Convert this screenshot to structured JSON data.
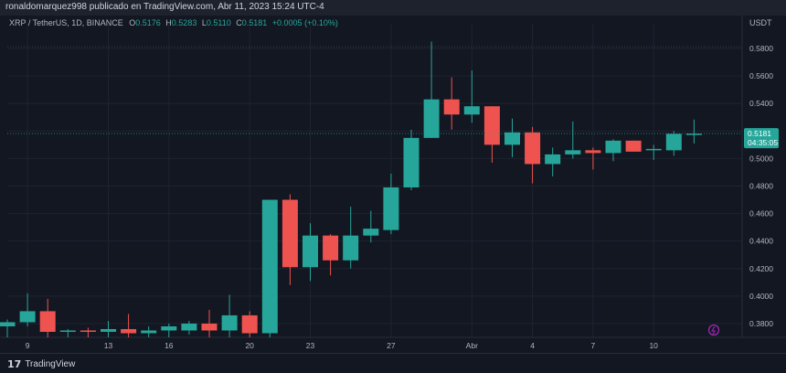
{
  "header": {
    "publisher_line": "ronaldomarquez998 publicado en TradingView.com, Abr 11, 2023 15:24 UTC-4"
  },
  "legend": {
    "symbol": "XRP / TetherUS, 1D, BINANCE",
    "open_key": "O",
    "open": "0.5176",
    "high_key": "H",
    "high": "0.5283",
    "low_key": "L",
    "low": "0.5110",
    "close_key": "C",
    "close": "0.5181",
    "change": "+0.0005 (+0.10%)"
  },
  "price_axis": {
    "unit": "USDT",
    "last_price": "0.5181",
    "countdown": "04:35:05"
  },
  "brand": {
    "name": "TradingView",
    "mark": "17"
  },
  "colors": {
    "up": "#26a69a",
    "down": "#ef5350",
    "background": "#131722",
    "grid": "#1f2330",
    "text": "#b2b5be",
    "price_tag": "#26a69a",
    "flash_icon": "#9c27b0"
  },
  "chart_data": {
    "type": "candlestick",
    "ylim": [
      0.37,
      0.59
    ],
    "y_ticks": [
      "0.3800",
      "0.4000",
      "0.4200",
      "0.4400",
      "0.4600",
      "0.4800",
      "0.5000",
      "0.5200",
      "0.5400",
      "0.5600",
      "0.5800"
    ],
    "x_tick_labels": [
      "9",
      "13",
      "16",
      "20",
      "23",
      "27",
      "Abr",
      "4",
      "7",
      "10"
    ],
    "x_tick_index": [
      1,
      5,
      8,
      12,
      15,
      19,
      23,
      26,
      29,
      32
    ],
    "candles": [
      {
        "o": 0.378,
        "h": 0.383,
        "l": 0.37,
        "c": 0.381
      },
      {
        "o": 0.381,
        "h": 0.402,
        "l": 0.378,
        "c": 0.389
      },
      {
        "o": 0.389,
        "h": 0.398,
        "l": 0.37,
        "c": 0.374
      },
      {
        "o": 0.3745,
        "h": 0.376,
        "l": 0.37,
        "c": 0.375
      },
      {
        "o": 0.375,
        "h": 0.377,
        "l": 0.37,
        "c": 0.374
      },
      {
        "o": 0.374,
        "h": 0.382,
        "l": 0.37,
        "c": 0.376
      },
      {
        "o": 0.376,
        "h": 0.387,
        "l": 0.37,
        "c": 0.373
      },
      {
        "o": 0.373,
        "h": 0.378,
        "l": 0.369,
        "c": 0.375
      },
      {
        "o": 0.375,
        "h": 0.38,
        "l": 0.37,
        "c": 0.378
      },
      {
        "o": 0.375,
        "h": 0.382,
        "l": 0.372,
        "c": 0.38
      },
      {
        "o": 0.38,
        "h": 0.39,
        "l": 0.369,
        "c": 0.375
      },
      {
        "o": 0.375,
        "h": 0.401,
        "l": 0.37,
        "c": 0.386
      },
      {
        "o": 0.386,
        "h": 0.389,
        "l": 0.37,
        "c": 0.373
      },
      {
        "o": 0.373,
        "h": 0.47,
        "l": 0.37,
        "c": 0.47
      },
      {
        "o": 0.47,
        "h": 0.474,
        "l": 0.408,
        "c": 0.421
      },
      {
        "o": 0.421,
        "h": 0.453,
        "l": 0.411,
        "c": 0.444
      },
      {
        "o": 0.444,
        "h": 0.445,
        "l": 0.415,
        "c": 0.426
      },
      {
        "o": 0.426,
        "h": 0.465,
        "l": 0.42,
        "c": 0.444
      },
      {
        "o": 0.444,
        "h": 0.462,
        "l": 0.439,
        "c": 0.449
      },
      {
        "o": 0.448,
        "h": 0.489,
        "l": 0.445,
        "c": 0.479
      },
      {
        "o": 0.479,
        "h": 0.521,
        "l": 0.477,
        "c": 0.515
      },
      {
        "o": 0.515,
        "h": 0.585,
        "l": 0.515,
        "c": 0.543
      },
      {
        "o": 0.543,
        "h": 0.559,
        "l": 0.521,
        "c": 0.532
      },
      {
        "o": 0.532,
        "h": 0.564,
        "l": 0.526,
        "c": 0.538
      },
      {
        "o": 0.538,
        "h": 0.538,
        "l": 0.497,
        "c": 0.51
      },
      {
        "o": 0.51,
        "h": 0.529,
        "l": 0.501,
        "c": 0.519
      },
      {
        "o": 0.519,
        "h": 0.523,
        "l": 0.482,
        "c": 0.496
      },
      {
        "o": 0.496,
        "h": 0.508,
        "l": 0.487,
        "c": 0.503
      },
      {
        "o": 0.503,
        "h": 0.527,
        "l": 0.5,
        "c": 0.506
      },
      {
        "o": 0.506,
        "h": 0.508,
        "l": 0.492,
        "c": 0.504
      },
      {
        "o": 0.504,
        "h": 0.514,
        "l": 0.498,
        "c": 0.513
      },
      {
        "o": 0.513,
        "h": 0.513,
        "l": 0.505,
        "c": 0.505
      },
      {
        "o": 0.506,
        "h": 0.51,
        "l": 0.499,
        "c": 0.507
      },
      {
        "o": 0.506,
        "h": 0.52,
        "l": 0.502,
        "c": 0.518
      },
      {
        "o": 0.5176,
        "h": 0.5283,
        "l": 0.511,
        "c": 0.5181
      }
    ]
  }
}
